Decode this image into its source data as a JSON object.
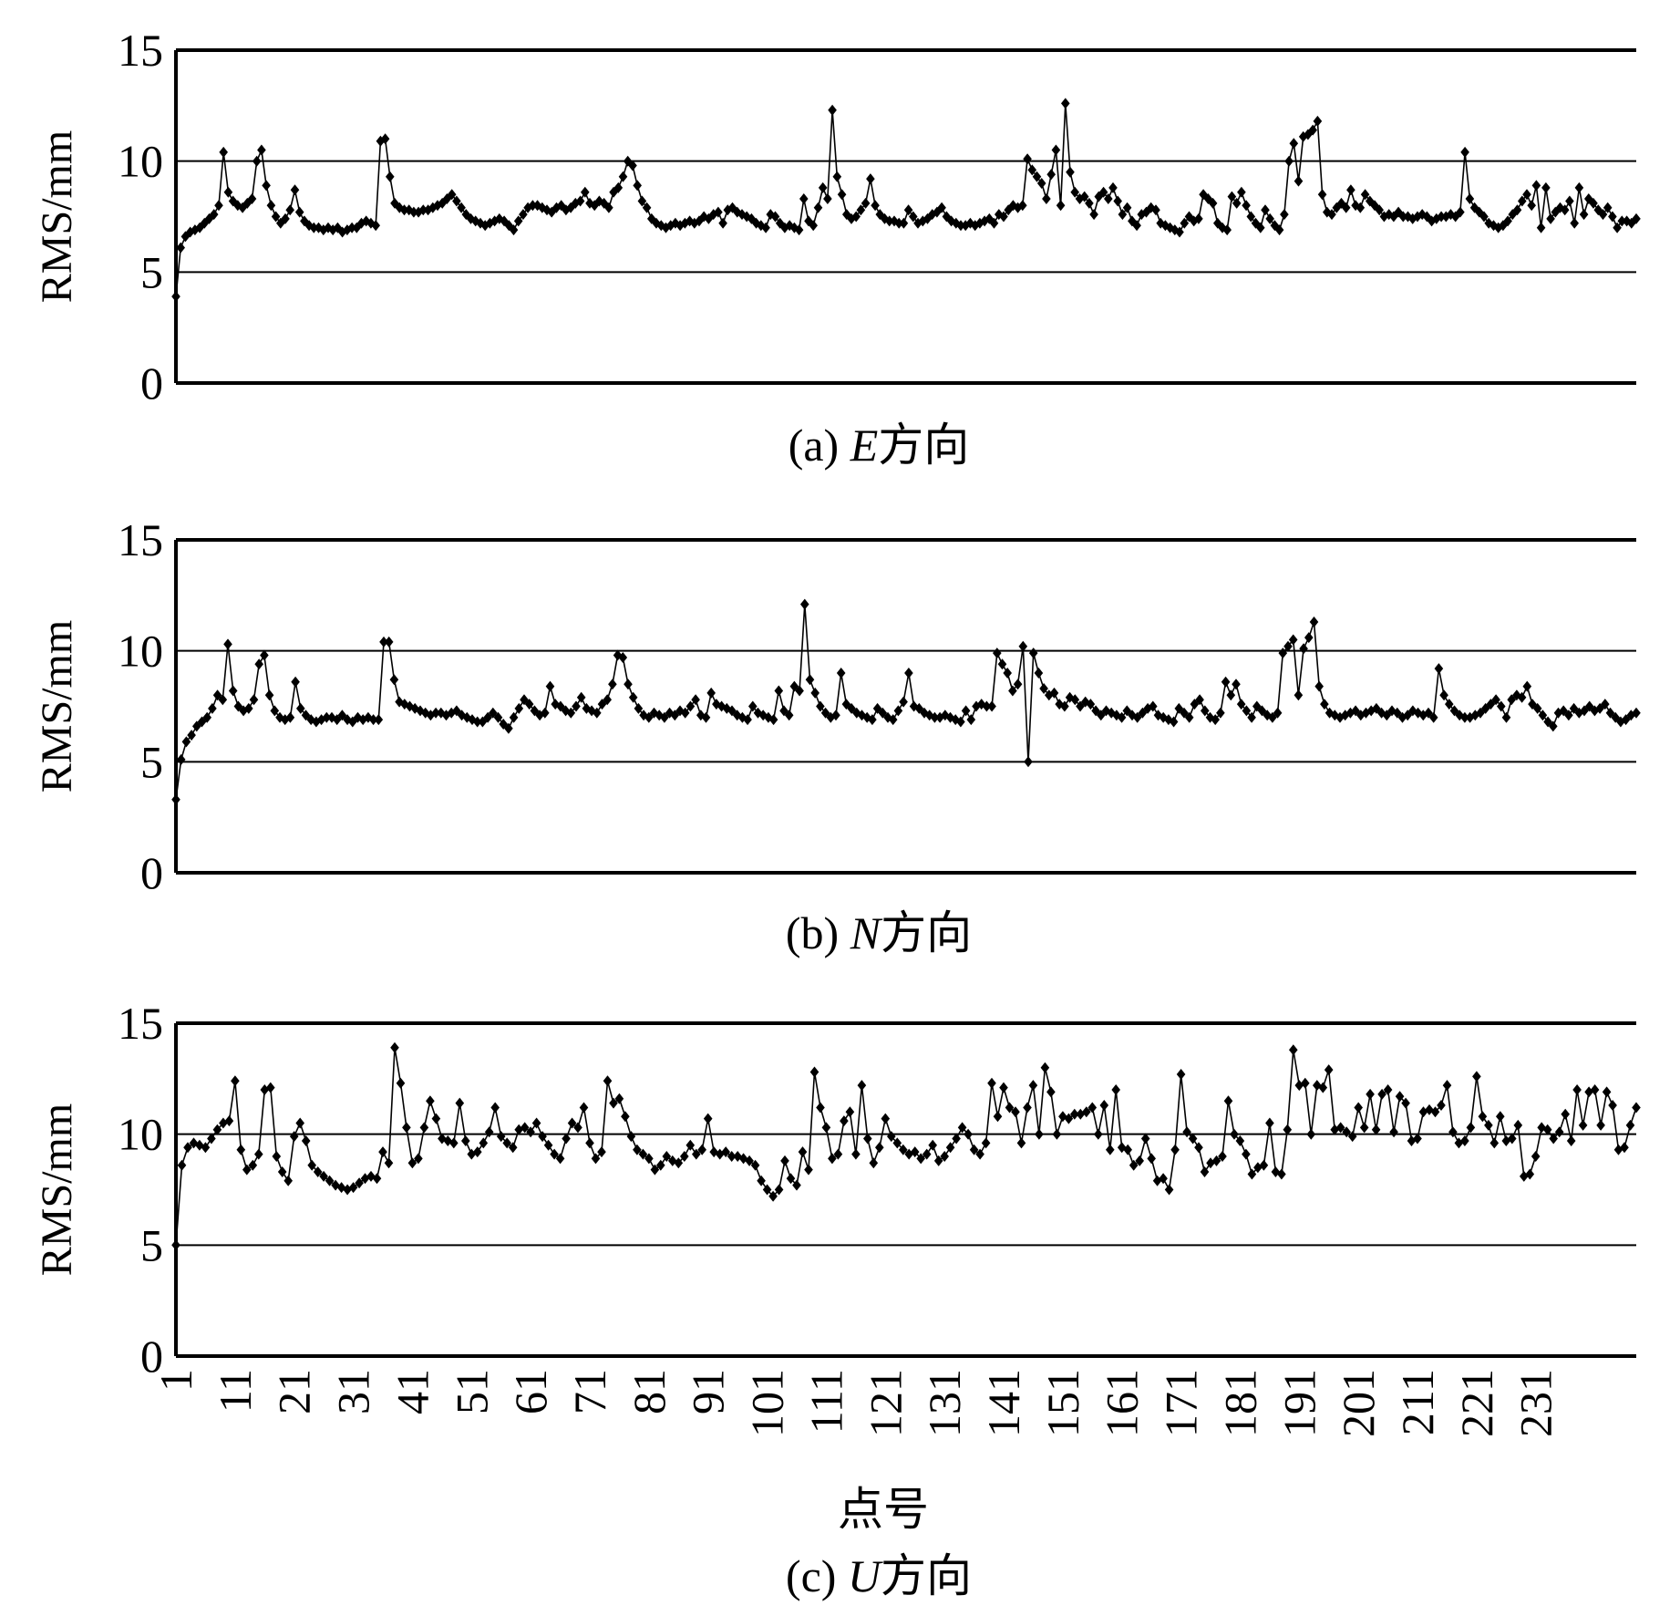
{
  "chart_data": [
    {
      "type": "line",
      "caption_prefix": "(a) ",
      "caption_axis": "E",
      "caption_suffix": "方向",
      "ylabel": "RMS/mm",
      "ylim": [
        0,
        15
      ],
      "yticks": [
        0,
        5,
        10,
        15
      ],
      "grid": true,
      "marker": "diamond",
      "color": "#000000",
      "series": [
        {
          "values": [
            3.9,
            6.1,
            6.6,
            6.8,
            6.9,
            7.0,
            7.2,
            7.4,
            7.6,
            8.0,
            10.4,
            8.6,
            8.2,
            8.0,
            7.9,
            8.1,
            8.3,
            10.0,
            10.5,
            8.9,
            8.0,
            7.5,
            7.2,
            7.4,
            7.8,
            8.7,
            7.7,
            7.3,
            7.1,
            7.0,
            7.0,
            6.9,
            7.0,
            6.9,
            7.0,
            6.8,
            6.9,
            7.0,
            7.0,
            7.2,
            7.3,
            7.2,
            7.1,
            10.9,
            11.0,
            9.3,
            8.1,
            7.9,
            7.8,
            7.8,
            7.7,
            7.7,
            7.8,
            7.8,
            7.9,
            8.0,
            8.1,
            8.3,
            8.5,
            8.2,
            7.9,
            7.6,
            7.4,
            7.3,
            7.2,
            7.1,
            7.2,
            7.3,
            7.4,
            7.3,
            7.1,
            6.9,
            7.3,
            7.6,
            7.9,
            8.0,
            8.0,
            7.9,
            7.8,
            7.7,
            7.9,
            8.0,
            7.8,
            7.9,
            8.1,
            8.2,
            8.6,
            8.1,
            8.0,
            8.2,
            8.1,
            7.9,
            8.6,
            8.8,
            9.3,
            10.0,
            9.8,
            8.9,
            8.2,
            7.9,
            7.4,
            7.2,
            7.1,
            7.0,
            7.1,
            7.2,
            7.1,
            7.2,
            7.3,
            7.2,
            7.3,
            7.5,
            7.4,
            7.6,
            7.7,
            7.2,
            7.8,
            7.9,
            7.7,
            7.6,
            7.5,
            7.4,
            7.2,
            7.1,
            7.0,
            7.6,
            7.5,
            7.2,
            7.0,
            7.1,
            7.0,
            6.9,
            8.3,
            7.3,
            7.1,
            7.9,
            8.8,
            8.3,
            12.3,
            9.3,
            8.5,
            7.6,
            7.4,
            7.5,
            7.8,
            8.1,
            9.2,
            8.0,
            7.6,
            7.4,
            7.3,
            7.3,
            7.2,
            7.2,
            7.8,
            7.5,
            7.2,
            7.3,
            7.4,
            7.6,
            7.7,
            7.9,
            7.5,
            7.3,
            7.2,
            7.1,
            7.1,
            7.2,
            7.1,
            7.2,
            7.3,
            7.4,
            7.2,
            7.6,
            7.5,
            7.8,
            8.0,
            7.9,
            8.0,
            10.1,
            9.6,
            9.3,
            9.0,
            8.3,
            9.4,
            10.5,
            8.0,
            12.6,
            9.5,
            8.6,
            8.3,
            8.4,
            8.1,
            7.6,
            8.4,
            8.6,
            8.3,
            8.8,
            8.2,
            7.6,
            7.9,
            7.3,
            7.1,
            7.6,
            7.7,
            7.9,
            7.8,
            7.2,
            7.1,
            7.0,
            6.9,
            6.8,
            7.2,
            7.5,
            7.3,
            7.4,
            8.5,
            8.3,
            8.1,
            7.2,
            7.0,
            6.9,
            8.4,
            8.1,
            8.6,
            8.0,
            7.5,
            7.2,
            7.0,
            7.8,
            7.4,
            7.1,
            6.9,
            7.6,
            10.0,
            10.8,
            9.1,
            11.1,
            11.2,
            11.4,
            11.8,
            8.5,
            7.7,
            7.6,
            7.9,
            8.1,
            7.9,
            8.7,
            8.0,
            7.9,
            8.5,
            8.2,
            8.0,
            7.8,
            7.5,
            7.6,
            7.5,
            7.7,
            7.5,
            7.5,
            7.4,
            7.5,
            7.6,
            7.5,
            7.3,
            7.4,
            7.5,
            7.5,
            7.6,
            7.5,
            7.7,
            10.4,
            8.3,
            7.9,
            7.7,
            7.5,
            7.2,
            7.1,
            7.0,
            7.1,
            7.3,
            7.6,
            7.8,
            8.2,
            8.5,
            8.0,
            8.9,
            7.0,
            8.8,
            7.4,
            7.7,
            7.9,
            7.8,
            8.2,
            7.2,
            8.8,
            7.6,
            8.3,
            8.1,
            7.8,
            7.6,
            7.9,
            7.5,
            7.0,
            7.3,
            7.3,
            7.2,
            7.4
          ]
        }
      ]
    },
    {
      "type": "line",
      "caption_prefix": "(b) ",
      "caption_axis": "N",
      "caption_suffix": "方向",
      "ylabel": "RMS/mm",
      "ylim": [
        0,
        15
      ],
      "yticks": [
        0,
        5,
        10,
        15
      ],
      "grid": true,
      "marker": "diamond",
      "color": "#000000",
      "series": [
        {
          "values": [
            3.3,
            5.1,
            5.9,
            6.2,
            6.6,
            6.8,
            7.0,
            7.4,
            8.0,
            7.8,
            10.3,
            8.2,
            7.5,
            7.3,
            7.4,
            7.8,
            9.4,
            9.8,
            8.0,
            7.3,
            7.0,
            6.9,
            7.0,
            8.6,
            7.4,
            7.1,
            6.9,
            6.8,
            6.9,
            7.0,
            7.0,
            6.9,
            7.1,
            6.9,
            6.8,
            7.0,
            6.9,
            7.0,
            6.9,
            6.9,
            10.4,
            10.4,
            8.7,
            7.7,
            7.6,
            7.5,
            7.4,
            7.3,
            7.2,
            7.1,
            7.2,
            7.2,
            7.1,
            7.2,
            7.3,
            7.1,
            7.0,
            6.9,
            6.8,
            6.8,
            7.0,
            7.2,
            7.0,
            6.7,
            6.5,
            7.0,
            7.4,
            7.8,
            7.6,
            7.3,
            7.1,
            7.2,
            8.4,
            7.6,
            7.5,
            7.3,
            7.2,
            7.5,
            7.9,
            7.4,
            7.3,
            7.2,
            7.6,
            7.8,
            8.5,
            9.8,
            9.7,
            8.5,
            7.9,
            7.4,
            7.1,
            7.0,
            7.2,
            7.1,
            7.0,
            7.2,
            7.1,
            7.3,
            7.2,
            7.5,
            7.8,
            7.1,
            7.0,
            8.1,
            7.6,
            7.5,
            7.4,
            7.3,
            7.1,
            7.0,
            6.9,
            7.5,
            7.2,
            7.1,
            7.0,
            6.9,
            8.2,
            7.3,
            7.1,
            8.4,
            8.2,
            12.1,
            8.7,
            8.1,
            7.5,
            7.2,
            7.0,
            7.1,
            9.0,
            7.6,
            7.4,
            7.2,
            7.1,
            7.0,
            6.9,
            7.4,
            7.2,
            7.0,
            6.9,
            7.3,
            7.7,
            9.0,
            7.5,
            7.4,
            7.2,
            7.1,
            7.0,
            7.0,
            7.1,
            7.0,
            6.9,
            6.8,
            7.3,
            6.9,
            7.5,
            7.6,
            7.5,
            7.5,
            9.9,
            9.4,
            9.0,
            8.2,
            8.5,
            10.2,
            5.0,
            9.9,
            9.0,
            8.3,
            8.0,
            8.1,
            7.6,
            7.5,
            7.9,
            7.8,
            7.5,
            7.7,
            7.6,
            7.3,
            7.1,
            7.3,
            7.2,
            7.1,
            7.0,
            7.3,
            7.1,
            7.0,
            7.2,
            7.4,
            7.5,
            7.1,
            7.0,
            6.9,
            6.8,
            7.4,
            7.2,
            7.0,
            7.6,
            7.8,
            7.3,
            7.0,
            6.9,
            7.2,
            8.6,
            8.0,
            8.5,
            7.6,
            7.3,
            7.0,
            7.5,
            7.3,
            7.1,
            7.0,
            7.2,
            9.9,
            10.2,
            10.5,
            8.0,
            10.1,
            10.6,
            11.3,
            8.4,
            7.6,
            7.2,
            7.1,
            7.0,
            7.1,
            7.2,
            7.3,
            7.1,
            7.2,
            7.3,
            7.4,
            7.2,
            7.1,
            7.3,
            7.2,
            7.0,
            7.1,
            7.3,
            7.2,
            7.1,
            7.2,
            7.0,
            9.2,
            8.0,
            7.6,
            7.3,
            7.1,
            7.0,
            7.0,
            7.1,
            7.2,
            7.4,
            7.6,
            7.8,
            7.5,
            7.0,
            7.8,
            8.0,
            7.9,
            8.4,
            7.6,
            7.4,
            7.1,
            6.8,
            6.6,
            7.2,
            7.3,
            7.1,
            7.4,
            7.2,
            7.3,
            7.5,
            7.3,
            7.4,
            7.6,
            7.2,
            7.0,
            6.8,
            6.9,
            7.1,
            7.2
          ]
        }
      ]
    },
    {
      "type": "line",
      "caption_prefix": "(c) ",
      "caption_axis": "U",
      "caption_suffix": "方向",
      "xlabel": "点号",
      "ylabel": "RMS/mm",
      "ylim": [
        0,
        15
      ],
      "yticks": [
        0,
        5,
        10,
        15
      ],
      "xticks": [
        1,
        11,
        21,
        31,
        41,
        51,
        61,
        71,
        81,
        91,
        101,
        111,
        121,
        131,
        141,
        151,
        161,
        171,
        181,
        191,
        201,
        211,
        221,
        231
      ],
      "grid": true,
      "marker": "diamond",
      "color": "#000000",
      "series": [
        {
          "values": [
            5.0,
            8.6,
            9.4,
            9.6,
            9.5,
            9.4,
            9.8,
            10.2,
            10.5,
            10.6,
            12.4,
            9.3,
            8.4,
            8.6,
            9.1,
            12.0,
            12.1,
            9.0,
            8.3,
            7.9,
            9.9,
            10.5,
            9.7,
            8.6,
            8.3,
            8.1,
            7.9,
            7.7,
            7.6,
            7.5,
            7.6,
            7.8,
            8.0,
            8.1,
            8.0,
            9.2,
            8.7,
            13.9,
            12.3,
            10.3,
            8.7,
            8.9,
            10.3,
            11.5,
            10.7,
            9.8,
            9.7,
            9.6,
            11.4,
            9.7,
            9.1,
            9.2,
            9.6,
            10.1,
            11.2,
            9.9,
            9.6,
            9.4,
            10.2,
            10.3,
            10.1,
            10.5,
            9.9,
            9.5,
            9.1,
            8.9,
            9.8,
            10.5,
            10.3,
            11.2,
            9.6,
            8.9,
            9.2,
            12.4,
            11.4,
            11.6,
            10.8,
            9.9,
            9.3,
            9.1,
            8.9,
            8.4,
            8.6,
            9.0,
            8.8,
            8.7,
            9.0,
            9.5,
            9.1,
            9.3,
            10.7,
            9.2,
            9.1,
            9.2,
            9.0,
            9.0,
            8.9,
            8.8,
            8.6,
            7.9,
            7.5,
            7.2,
            7.5,
            8.8,
            8.0,
            7.7,
            9.2,
            8.4,
            12.8,
            11.2,
            10.3,
            8.9,
            9.1,
            10.6,
            11.0,
            9.1,
            12.2,
            9.8,
            8.7,
            9.4,
            10.7,
            9.9,
            9.6,
            9.3,
            9.1,
            9.2,
            8.9,
            9.1,
            9.5,
            8.8,
            9.0,
            9.4,
            9.8,
            10.3,
            10.0,
            9.3,
            9.1,
            9.6,
            12.3,
            10.8,
            12.1,
            11.2,
            11.0,
            9.6,
            11.2,
            12.2,
            10.0,
            13.0,
            11.9,
            10.0,
            10.8,
            10.7,
            10.9,
            10.9,
            11.0,
            11.2,
            10.0,
            11.3,
            9.3,
            12.0,
            9.4,
            9.3,
            8.6,
            8.8,
            9.8,
            8.9,
            7.9,
            8.0,
            7.5,
            9.3,
            12.7,
            10.1,
            9.8,
            9.4,
            8.3,
            8.7,
            8.8,
            9.0,
            11.5,
            10.0,
            9.7,
            9.1,
            8.2,
            8.5,
            8.6,
            10.5,
            8.3,
            8.2,
            10.2,
            13.8,
            12.2,
            12.3,
            10.0,
            12.2,
            12.1,
            12.9,
            10.2,
            10.3,
            10.1,
            9.9,
            11.2,
            10.3,
            11.8,
            10.2,
            11.8,
            12.0,
            10.1,
            11.7,
            11.4,
            9.7,
            9.8,
            11.0,
            11.1,
            11.0,
            11.3,
            12.2,
            10.1,
            9.6,
            9.7,
            10.3,
            12.6,
            10.8,
            10.4,
            9.6,
            10.8,
            9.7,
            9.8,
            10.4,
            8.1,
            8.2,
            9.0,
            10.3,
            10.2,
            9.8,
            10.1,
            10.9,
            9.7,
            12.0,
            10.4,
            11.9,
            12.0,
            10.4,
            11.9,
            11.3,
            9.3,
            9.4,
            10.4,
            11.2
          ]
        }
      ]
    }
  ]
}
